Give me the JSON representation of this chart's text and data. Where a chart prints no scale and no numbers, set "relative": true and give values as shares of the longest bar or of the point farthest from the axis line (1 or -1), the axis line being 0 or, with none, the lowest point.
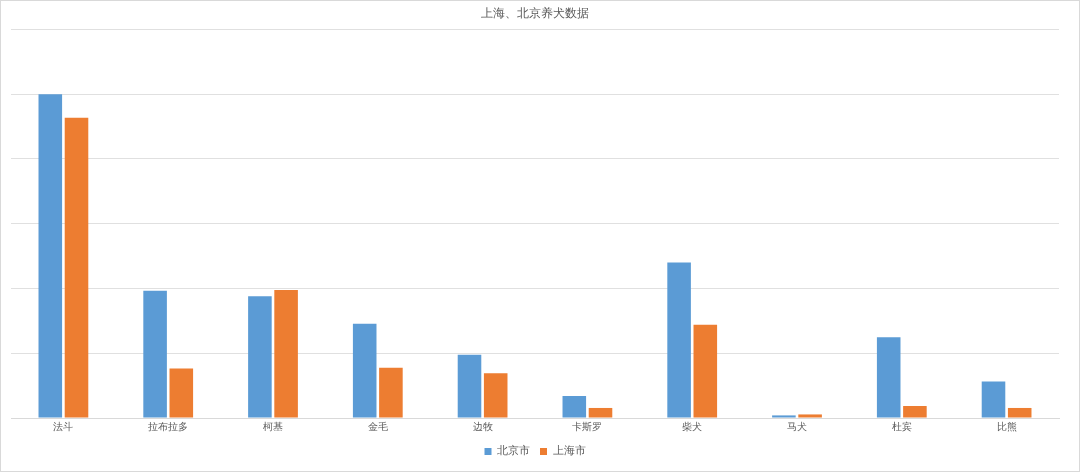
{
  "chart_data": {
    "type": "bar",
    "title": "上海、北京养犬数据",
    "relative": true,
    "grid": "y",
    "legend": "bottom",
    "categories": [
      "法斗",
      "拉布拉多",
      "柯基",
      "金毛",
      "边牧",
      "卡斯罗",
      "柴犬",
      "马犬",
      "杜宾",
      "比熊"
    ],
    "series": [
      {
        "name": "北京市",
        "color": "#5b9bd5",
        "values": [
          1,
          0.393,
          0.376,
          0.291,
          0.195,
          0.068,
          0.48,
          0.008,
          0.249,
          0.113
        ]
      },
      {
        "name": "上海市",
        "color": "#ed7d31",
        "values": [
          0.927,
          0.153,
          0.395,
          0.155,
          0.138,
          0.031,
          0.288,
          0.011,
          0.037,
          0.031
        ]
      }
    ]
  }
}
